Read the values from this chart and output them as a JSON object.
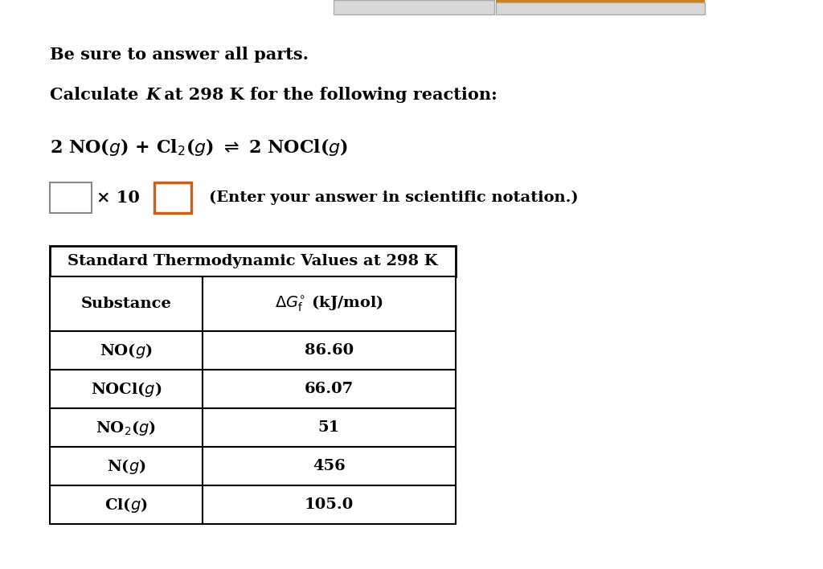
{
  "background_color": "#ffffff",
  "line1": "Be sure to answer all parts.",
  "line2_prefix": "Calculate ",
  "line2_K": "K",
  "line2_suffix": " at 298 K for the following reaction:",
  "scientific_notation_text": "(Enter your answer in scientific notation.)",
  "table_title": "Standard Thermodynamic Values at 298 K",
  "col1_header": "Substance",
  "col2_header_latex": "$\\Delta G^{\\circ}_{\\mathrm{f}}$ (kJ/mol)",
  "substances_latex": [
    "NO($g$)",
    "NOCl($g$)",
    "NO$_2$($g$)",
    "N($g$)",
    "Cl($g$)"
  ],
  "values": [
    "86.60",
    "66.07",
    "51",
    "456",
    "105.0"
  ],
  "box1_border": "#888888",
  "box2_border": "#c8611a",
  "times10_text": "× 10",
  "top_gray_color": "#d0d0d0",
  "top_gray_border": "#aaaaaa",
  "top_orange_line": "#b87840",
  "top_orange_fill": "#d0d0d0"
}
